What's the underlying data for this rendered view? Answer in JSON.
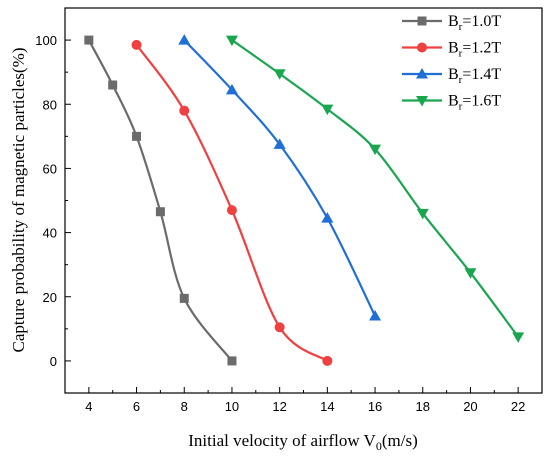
{
  "chart_data": {
    "type": "line",
    "xlabel": "Initial velocity of airflow V",
    "xlabel_sub": "0",
    "xlabel_suffix": "(m/s)",
    "ylabel": "Capture probability of magnetic particles(%)",
    "xlim": [
      3,
      23
    ],
    "ylim": [
      -10,
      110
    ],
    "xticks": [
      4,
      6,
      8,
      10,
      12,
      14,
      16,
      18,
      20,
      22
    ],
    "yticks": [
      0,
      20,
      40,
      60,
      80,
      100
    ],
    "grid": false,
    "legend_position": "top-right",
    "series": [
      {
        "name": "Br=1.0T",
        "label_main": "B",
        "label_sub": "r",
        "label_rest": "=1.0T",
        "color": "#6b6b6b",
        "marker": "square",
        "x": [
          4,
          5,
          6,
          7,
          8,
          10
        ],
        "y": [
          100,
          86,
          70,
          46.5,
          19.5,
          0
        ]
      },
      {
        "name": "Br=1.2T",
        "label_main": "B",
        "label_sub": "r",
        "label_rest": "=1.2T",
        "color": "#f04040",
        "marker": "circle",
        "x": [
          6,
          8,
          10,
          12,
          14
        ],
        "y": [
          98.5,
          78,
          47,
          10.5,
          0
        ]
      },
      {
        "name": "Br=1.4T",
        "label_main": "B",
        "label_sub": "r",
        "label_rest": "=1.4T",
        "color": "#1f6fd6",
        "marker": "triangle-up",
        "x": [
          8,
          10,
          12,
          14,
          16
        ],
        "y": [
          100,
          84.5,
          67.5,
          44.5,
          14
        ]
      },
      {
        "name": "Br=1.6T",
        "label_main": "B",
        "label_sub": "r",
        "label_rest": "=1.6T",
        "color": "#1aa64f",
        "marker": "triangle-down",
        "x": [
          10,
          12,
          14,
          16,
          18,
          20,
          22
        ],
        "y": [
          100,
          89.5,
          78.5,
          66,
          46,
          27.5,
          7.5
        ]
      }
    ]
  }
}
